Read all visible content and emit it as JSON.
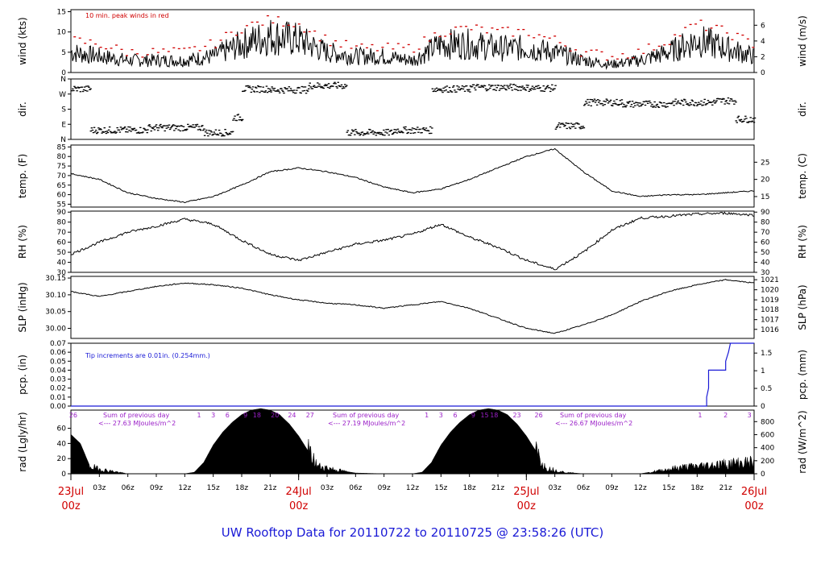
{
  "title": "UW Rooftop Data for 20110722  to  20110725 @ 23:58:26  (UTC)",
  "colors": {
    "text": "#000000",
    "date": "#d00000",
    "title": "#1a1ad6",
    "red": "#d00000",
    "blue": "#1a1ad6",
    "purple": "#9b20c8"
  },
  "time_axis": {
    "hour_ticks": [
      "03z",
      "06z",
      "09z",
      "12z",
      "15z",
      "18z",
      "21z",
      "03z",
      "06z",
      "09z",
      "12z",
      "15z",
      "18z",
      "21z",
      "03z",
      "06z",
      "09z",
      "12z",
      "15z",
      "18z",
      "21z"
    ],
    "day_labels": [
      {
        "day": "23Jul",
        "time": "00z"
      },
      {
        "day": "24Jul",
        "time": "00z"
      },
      {
        "day": "25Jul",
        "time": "00z"
      },
      {
        "day": "26Jul",
        "time": "00z"
      }
    ]
  },
  "chart_data": [
    {
      "type": "line",
      "id": "wind",
      "ylabel": "wind (kts)",
      "ylabel2": "wind (m/s)",
      "ylim": [
        0,
        15.5
      ],
      "yticks": [
        0,
        5,
        10,
        15
      ],
      "y2ticks": [
        "0",
        "2",
        "4",
        "6"
      ],
      "annotation": "10 min. peak winds in red",
      "series": [
        {
          "x": [
            0,
            3,
            6,
            9,
            12,
            15,
            18,
            21,
            24,
            27,
            30,
            33,
            36,
            39,
            42,
            45,
            48,
            51,
            54,
            57,
            60,
            63,
            66,
            69,
            72
          ],
          "y": [
            5,
            4,
            3,
            3,
            3,
            4,
            7,
            9,
            8,
            5,
            4,
            4,
            3,
            7,
            7,
            6,
            6,
            5,
            3,
            2,
            3,
            5,
            8,
            6,
            4
          ]
        },
        {
          "x": [
            0,
            3,
            6,
            9,
            12,
            15,
            18,
            21,
            24,
            27,
            30,
            33,
            36,
            39,
            42,
            45,
            48,
            51,
            54,
            57,
            60,
            63,
            66,
            69,
            72
          ],
          "y": [
            8,
            7,
            5,
            5,
            5,
            7,
            11,
            13,
            12,
            8,
            6,
            6,
            6,
            10,
            11,
            10,
            10,
            8,
            5,
            4,
            5,
            8,
            12,
            10,
            7
          ]
        }
      ]
    },
    {
      "type": "scatter",
      "id": "dir",
      "ylabel": "dir.",
      "ylabel2": "dir.",
      "ylim": [
        0,
        360
      ],
      "yticks": [
        "N",
        "E",
        "S",
        "W",
        "N"
      ],
      "segments": [
        {
          "x0": 0,
          "x1": 2,
          "dir": 300
        },
        {
          "x0": 2,
          "x1": 8,
          "dir": 55
        },
        {
          "x0": 8,
          "x1": 14,
          "dir": 70
        },
        {
          "x0": 14,
          "x1": 17,
          "dir": 40
        },
        {
          "x0": 17,
          "x1": 18,
          "dir": 130
        },
        {
          "x0": 18,
          "x1": 21,
          "dir": 300
        },
        {
          "x0": 21,
          "x1": 25,
          "dir": 295
        },
        {
          "x0": 25,
          "x1": 29,
          "dir": 320
        },
        {
          "x0": 29,
          "x1": 34,
          "dir": 40
        },
        {
          "x0": 34,
          "x1": 38,
          "dir": 55
        },
        {
          "x0": 38,
          "x1": 42,
          "dir": 300
        },
        {
          "x0": 42,
          "x1": 48,
          "dir": 310
        },
        {
          "x0": 48,
          "x1": 51,
          "dir": 305
        },
        {
          "x0": 51,
          "x1": 54,
          "dir": 80
        },
        {
          "x0": 54,
          "x1": 58,
          "dir": 220
        },
        {
          "x0": 58,
          "x1": 63,
          "dir": 210
        },
        {
          "x0": 63,
          "x1": 68,
          "dir": 220
        },
        {
          "x0": 68,
          "x1": 70,
          "dir": 230
        },
        {
          "x0": 70,
          "x1": 72,
          "dir": 120
        }
      ]
    },
    {
      "type": "line",
      "id": "temp",
      "ylabel": "temp. (F)",
      "ylabel2": "temp. (C)",
      "ylim": [
        53.5,
        86
      ],
      "yticks": [
        55,
        60,
        65,
        70,
        75,
        80,
        85
      ],
      "y2ticks": [
        {
          "label": "15",
          "v": 59
        },
        {
          "label": "20",
          "v": 68
        },
        {
          "label": "25",
          "v": 77
        }
      ],
      "x": [
        0,
        3,
        6,
        9,
        12,
        15,
        18,
        21,
        24,
        27,
        30,
        33,
        36,
        39,
        42,
        45,
        48,
        51,
        54,
        57,
        60,
        63,
        66,
        69,
        72
      ],
      "y": [
        71,
        68,
        61,
        58,
        56,
        59,
        65,
        72,
        74,
        72,
        69,
        64,
        61,
        63,
        68,
        74,
        80,
        84,
        72,
        62,
        59,
        60,
        60,
        61,
        62
      ]
    },
    {
      "type": "line",
      "id": "rh",
      "ylabel": "RH (%)",
      "ylabel2": "RH (%)",
      "ylim": [
        30,
        91
      ],
      "yticks": [
        30,
        40,
        50,
        60,
        70,
        80,
        90
      ],
      "y2ticks": [
        "30",
        "40",
        "50",
        "60",
        "70",
        "80",
        "90"
      ],
      "x": [
        0,
        3,
        6,
        9,
        12,
        15,
        18,
        21,
        24,
        27,
        30,
        33,
        36,
        39,
        42,
        45,
        48,
        51,
        54,
        57,
        60,
        63,
        66,
        69,
        72
      ],
      "y": [
        48,
        60,
        70,
        76,
        83,
        78,
        62,
        48,
        42,
        50,
        58,
        62,
        68,
        78,
        65,
        55,
        42,
        33,
        50,
        72,
        84,
        86,
        88,
        89,
        87
      ]
    },
    {
      "type": "line",
      "id": "slp",
      "ylabel": "SLP (inHg)",
      "ylabel2": "SLP (hPa)",
      "ylim": [
        29.97,
        30.155
      ],
      "yticks": [
        "30.00",
        "30.05",
        "30.10",
        "30.15"
      ],
      "y2ticks": [
        {
          "label": "1016",
          "v": 29.997
        },
        {
          "label": "1017",
          "v": 30.026
        },
        {
          "label": "1018",
          "v": 30.056
        },
        {
          "label": "1019",
          "v": 30.085
        },
        {
          "label": "1020",
          "v": 30.115
        },
        {
          "label": "1021",
          "v": 30.145
        }
      ],
      "x": [
        0,
        3,
        6,
        9,
        12,
        15,
        18,
        21,
        24,
        27,
        30,
        33,
        36,
        39,
        42,
        45,
        48,
        51,
        54,
        57,
        60,
        63,
        66,
        69,
        72
      ],
      "y": [
        30.11,
        30.095,
        30.11,
        30.125,
        30.135,
        30.13,
        30.12,
        30.1,
        30.085,
        30.075,
        30.07,
        30.06,
        30.07,
        30.08,
        30.06,
        30.03,
        30.0,
        29.985,
        30.01,
        30.04,
        30.08,
        30.11,
        30.13,
        30.145,
        30.135
      ]
    },
    {
      "type": "line",
      "id": "pcp",
      "ylabel": "pcp. (in)",
      "ylabel2": "pcp. (mm)",
      "ylim": [
        0,
        0.07
      ],
      "yticks": [
        "0.00",
        "0.01",
        "0.02",
        "0.03",
        "0.04",
        "0.05",
        "0.06",
        "0.07"
      ],
      "y2ticks": [
        {
          "label": "0",
          "v": 0
        },
        {
          "label": "0.5",
          "v": 0.01969
        },
        {
          "label": "1",
          "v": 0.03937
        },
        {
          "label": "1.5",
          "v": 0.05906
        }
      ],
      "annotation": "Tip increments are 0.01in. (0.254mm.)",
      "x": [
        0,
        67,
        67,
        67.2,
        67.2,
        69.0,
        69.0,
        69.3,
        69.3,
        69.5,
        69.5,
        72
      ],
      "y": [
        0,
        0,
        0.01,
        0.02,
        0.04,
        0.04,
        0.05,
        0.06,
        0.06,
        0.07,
        0.07,
        0.07
      ]
    },
    {
      "type": "area",
      "id": "rad",
      "ylabel": "rad (Lgly/hr)",
      "ylabel2": "rad (W/m^2)",
      "ylim": [
        0,
        84
      ],
      "yticks": [
        0,
        20,
        40,
        60
      ],
      "y2ticks": [
        {
          "label": "0",
          "v": 0
        },
        {
          "label": "200",
          "v": 17.2
        },
        {
          "label": "400",
          "v": 34.4
        },
        {
          "label": "600",
          "v": 51.6
        },
        {
          "label": "800",
          "v": 68.8
        }
      ],
      "x": [
        0,
        1,
        2,
        3,
        4,
        5,
        6,
        9,
        12,
        13,
        14,
        15,
        16,
        17,
        18,
        19,
        20,
        21,
        22,
        23,
        24,
        25,
        26,
        27,
        28,
        30,
        33,
        36,
        37,
        38,
        39,
        40,
        41,
        42,
        43,
        44,
        45,
        46,
        47,
        48,
        49,
        50,
        51,
        52,
        54,
        57,
        60,
        62,
        64,
        66,
        68,
        70,
        72
      ],
      "y": [
        52,
        40,
        10,
        6,
        4,
        2,
        0,
        0,
        0,
        2,
        15,
        38,
        55,
        68,
        78,
        84,
        86,
        84,
        78,
        66,
        50,
        30,
        10,
        8,
        5,
        1,
        0,
        0,
        2,
        15,
        38,
        55,
        68,
        78,
        84,
        86,
        84,
        78,
        66,
        50,
        30,
        8,
        5,
        2,
        0,
        0,
        0,
        4,
        8,
        10,
        12,
        14,
        15
      ],
      "daily_annotations": [
        {
          "sum_label": "Sum of previous day",
          "total": "<--- 27.63 MJoules/m^2"
        },
        {
          "sum_label": "Sum of previous day",
          "total": "<--- 27.19 MJoules/m^2"
        },
        {
          "sum_label": "Sum of previous day",
          "total": "<--- 26.67 MJoules/m^2"
        }
      ],
      "hour_labels": [
        {
          "t": 0.25,
          "label": "26"
        },
        {
          "t": 13.5,
          "label": "1"
        },
        {
          "t": 15,
          "label": "3"
        },
        {
          "t": 16.5,
          "label": "6"
        },
        {
          "t": 18.4,
          "label": "9"
        },
        {
          "t": 19.6,
          "label": "18"
        },
        {
          "t": 21.5,
          "label": "20"
        },
        {
          "t": 23.3,
          "label": "24"
        },
        {
          "t": 25.2,
          "label": "27"
        },
        {
          "t": 37.5,
          "label": "1"
        },
        {
          "t": 39,
          "label": "3"
        },
        {
          "t": 40.5,
          "label": "6"
        },
        {
          "t": 42.4,
          "label": "9"
        },
        {
          "t": 43.6,
          "label": "15"
        },
        {
          "t": 44.6,
          "label": "18"
        },
        {
          "t": 47,
          "label": "23"
        },
        {
          "t": 49.3,
          "label": "26"
        },
        {
          "t": 66.3,
          "label": "1"
        },
        {
          "t": 69,
          "label": "2"
        },
        {
          "t": 71.5,
          "label": "3"
        }
      ]
    }
  ]
}
